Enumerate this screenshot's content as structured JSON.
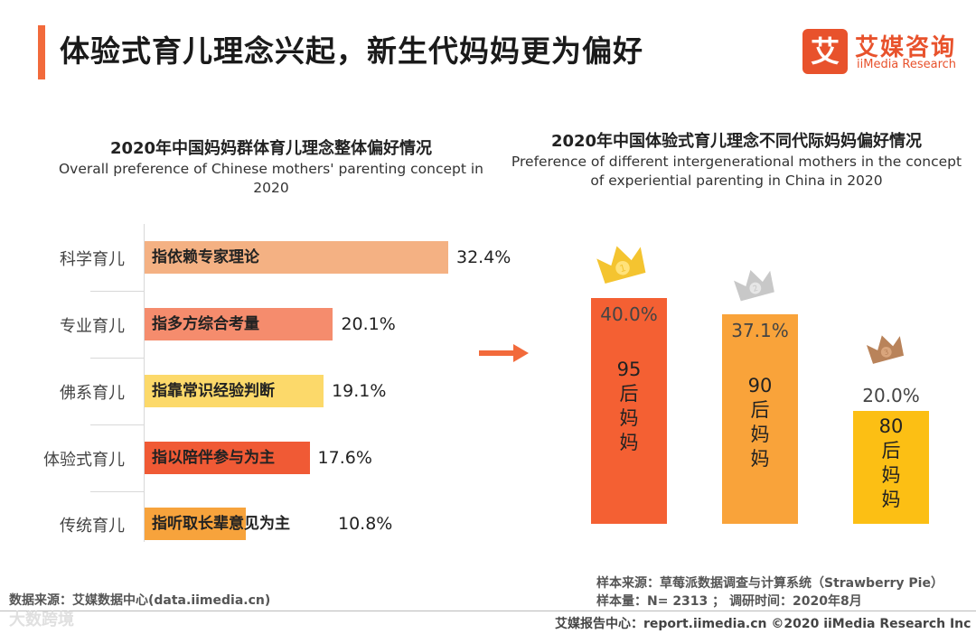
{
  "header": {
    "title": "体验式育儿理念兴起，新生代妈妈更为偏好",
    "logo_mark": "艾",
    "logo_cn": "艾媒咨询",
    "logo_en": "iiMedia Research"
  },
  "colors": {
    "accent": "#f26a3b",
    "bar1": "#f4b183",
    "bar2": "#f58c6d",
    "bar3": "#fcd96a",
    "bar4": "#f05a35",
    "bar5": "#f7a33c",
    "vbar1": "#f46033",
    "vbar2": "#f9a33a",
    "vbar3": "#fcbf14"
  },
  "left_chart": {
    "title_cn": "2020年中国妈妈群体育儿理念整体偏好情况",
    "title_en": "Overall preference of Chinese mothers' parenting concept in 2020"
  },
  "right_chart": {
    "title_cn": "2020年中国体验式育儿理念不同代际妈妈偏好情况",
    "title_en": "Preference of different intergenerational mothers in the concept of experiential parenting in China in 2020"
  },
  "chart_data": [
    {
      "type": "bar",
      "orientation": "horizontal",
      "title": "2020年中国妈妈群体育儿理念整体偏好情况",
      "categories": [
        "科学育儿",
        "专业育儿",
        "佛系育儿",
        "体验式育儿",
        "传统育儿"
      ],
      "bar_texts": [
        "指依赖专家理论",
        "指多方综合考量",
        "指靠常识经验判断",
        "指以陪伴参与为主",
        "指听取长辈意见为主"
      ],
      "values": [
        32.4,
        20.1,
        19.1,
        17.6,
        10.8
      ],
      "value_labels": [
        "32.4%",
        "20.1%",
        "19.1%",
        "17.6%",
        "10.8%"
      ],
      "unit": "%"
    },
    {
      "type": "bar",
      "orientation": "vertical",
      "title": "2020年中国体验式育儿理念不同代际妈妈偏好情况",
      "categories": [
        "95后妈妈",
        "90后妈妈",
        "80后妈妈"
      ],
      "bar_labels": [
        "95\n后\n妈\n妈",
        "90\n后\n妈\n妈",
        "80\n后\n妈\n妈"
      ],
      "values": [
        40.0,
        37.1,
        20.0
      ],
      "value_labels": [
        "40.0%",
        "37.1%",
        "20.0%"
      ],
      "rank_badges": [
        "1",
        "2",
        "3"
      ],
      "unit": "%"
    }
  ],
  "sources": {
    "left": "数据来源：艾媒数据中心(data.iimedia.cn)",
    "sample_source": "样本来源：草莓派数据调查与计算系统（Strawberry Pie）",
    "sample_size": "样本量：N= 2313 ；  调研时间：2020年8月",
    "footer": "艾媒报告中心：report.iimedia.cn   ©2020  iiMedia Research  Inc",
    "watermark": "大数跨境"
  }
}
